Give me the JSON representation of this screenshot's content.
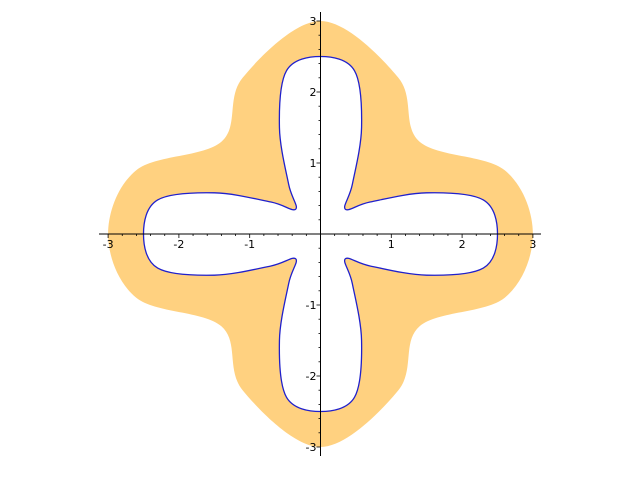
{
  "chart_data": {
    "type": "area",
    "title": "",
    "xlabel": "",
    "ylabel": "",
    "xlim": [
      -3,
      3
    ],
    "ylim": [
      -3,
      3
    ],
    "grid": false,
    "x_ticks": [
      "-3",
      "-2",
      "-1",
      "1",
      "2",
      "3"
    ],
    "y_ticks": [
      "3",
      "2",
      "1",
      "-1",
      "-2",
      "-3"
    ],
    "series": [
      {
        "role": "filled-region",
        "color": "#ffd180",
        "points": [
          [
            3,
            0
          ],
          [
            2.6,
            0.9
          ],
          [
            1.4,
            1.3
          ],
          [
            1.1,
            2.2
          ],
          [
            0,
            3
          ],
          [
            -1.1,
            2.2
          ],
          [
            -1.4,
            1.3
          ],
          [
            -2.6,
            0.9
          ],
          [
            -3,
            0
          ],
          [
            -2.6,
            -0.9
          ],
          [
            -1.4,
            -1.3
          ],
          [
            -1.1,
            -2.2
          ],
          [
            0,
            -3
          ],
          [
            1.1,
            -2.2
          ],
          [
            1.4,
            -1.3
          ],
          [
            2.6,
            -0.9
          ]
        ]
      },
      {
        "role": "curve",
        "color": "#2020cc",
        "points": [
          [
            2.5,
            0
          ],
          [
            2.3,
            -0.48
          ],
          [
            1.5,
            -0.58
          ],
          [
            0.7,
            -0.45
          ],
          [
            0.35,
            -0.35
          ],
          [
            0.45,
            -0.7
          ],
          [
            0.58,
            -1.5
          ],
          [
            0.48,
            -2.3
          ],
          [
            0,
            -2.5
          ],
          [
            -0.48,
            -2.3
          ],
          [
            -0.58,
            -1.5
          ],
          [
            -0.45,
            -0.7
          ],
          [
            -0.35,
            -0.35
          ],
          [
            -0.7,
            -0.45
          ],
          [
            -1.5,
            -0.58
          ],
          [
            -2.3,
            -0.48
          ],
          [
            -2.5,
            0
          ],
          [
            -2.3,
            0.48
          ],
          [
            -1.5,
            0.58
          ],
          [
            -0.7,
            0.45
          ],
          [
            -0.35,
            0.35
          ],
          [
            -0.45,
            0.7
          ],
          [
            -0.58,
            1.5
          ],
          [
            -0.48,
            2.3
          ],
          [
            0,
            2.5
          ],
          [
            0.48,
            2.3
          ],
          [
            0.58,
            1.5
          ],
          [
            0.45,
            0.7
          ],
          [
            0.35,
            0.35
          ],
          [
            0.7,
            0.45
          ],
          [
            1.5,
            0.58
          ],
          [
            2.3,
            0.48
          ]
        ]
      }
    ]
  }
}
